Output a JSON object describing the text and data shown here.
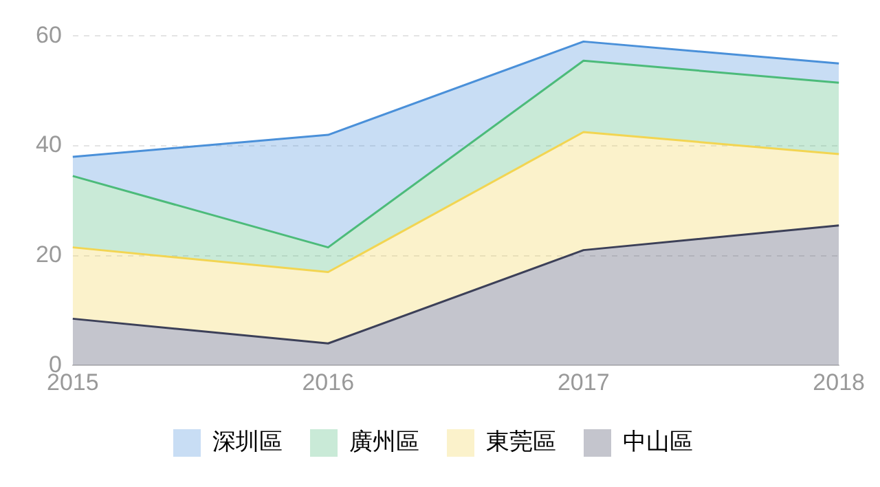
{
  "chart_data": {
    "type": "area",
    "stacked": true,
    "categories": [
      "2015",
      "2016",
      "2017",
      "2018"
    ],
    "series": [
      {
        "name": "中山區",
        "color": "#3c4058",
        "values": [
          8.5,
          4,
          21,
          25.5
        ]
      },
      {
        "name": "東莞區",
        "color": "#f2d552",
        "values": [
          13,
          13,
          21.5,
          13
        ]
      },
      {
        "name": "廣州區",
        "color": "#4cbb7a",
        "values": [
          13,
          4.5,
          13,
          13
        ]
      },
      {
        "name": "深圳區",
        "color": "#4a90d9",
        "values": [
          3.5,
          20.5,
          3.5,
          3.5
        ]
      }
    ],
    "ylim": [
      0,
      60
    ],
    "yticks": [
      0,
      20,
      40,
      60
    ],
    "grid": "y",
    "legend": "bottom",
    "marker": "none",
    "line_style": "solid"
  }
}
